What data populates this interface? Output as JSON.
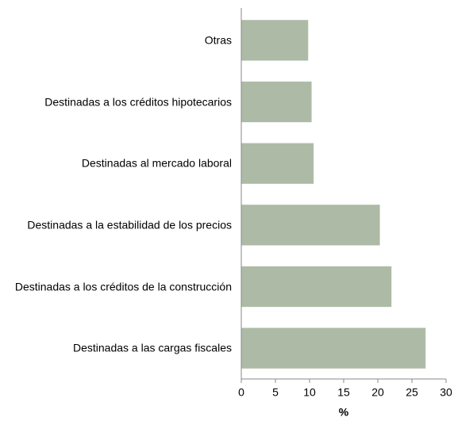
{
  "chart_data": {
    "type": "bar",
    "orientation": "horizontal",
    "categories": [
      "Otras",
      "Destinadas a los créditos hipotecarios",
      "Destinadas al mercado laboral",
      "Destinadas a la estabilidad de los precios",
      "Destinadas a los créditos de la construcción",
      "Destinadas a las cargas fiscales"
    ],
    "values": [
      9.8,
      10.3,
      10.6,
      20.3,
      22.0,
      27.0
    ],
    "color": "#adbba6",
    "x_label": "%",
    "xlim": [
      0,
      30
    ],
    "xticks": [
      0,
      5,
      10,
      15,
      20,
      25,
      30
    ]
  }
}
